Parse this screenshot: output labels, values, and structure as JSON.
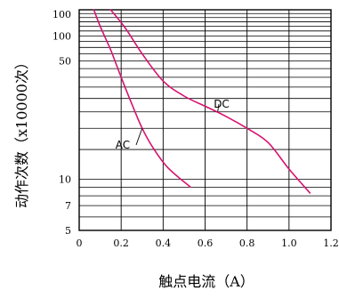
{
  "chart_data": {
    "type": "line",
    "xlabel": "触点电流（A）",
    "ylabel": "动作次数（x10000次）",
    "xlim": [
      0,
      1.2
    ],
    "ylim": [
      5,
      100
    ],
    "yscale": "log",
    "grid": true,
    "x_ticks": [
      "0",
      "0.2",
      "0.4",
      "0.6",
      "0.8",
      "1.0",
      "1.2"
    ],
    "x_tick_values": [
      0,
      0.2,
      0.4,
      0.6,
      0.8,
      1.0,
      1.2
    ],
    "y_ticks": [
      "5",
      "7",
      "10",
      "50",
      "100",
      "100"
    ],
    "y_tick_values": [
      5,
      7,
      10,
      50,
      100,
      100
    ],
    "series": [
      {
        "name": "AC",
        "x": [
          0.07,
          0.1,
          0.15,
          0.2,
          0.25,
          0.3,
          0.35,
          0.42,
          0.53
        ],
        "y": [
          100,
          80,
          58,
          40,
          28,
          20,
          15.5,
          11.8,
          9.0
        ]
      },
      {
        "name": "DC",
        "x": [
          0.15,
          0.22,
          0.3,
          0.4,
          0.5,
          0.6,
          0.7,
          0.8,
          0.9,
          1.0,
          1.1
        ],
        "y": [
          100,
          78,
          55,
          38,
          31,
          27,
          23.5,
          20,
          16.5,
          11.5,
          8.3
        ]
      }
    ]
  }
}
